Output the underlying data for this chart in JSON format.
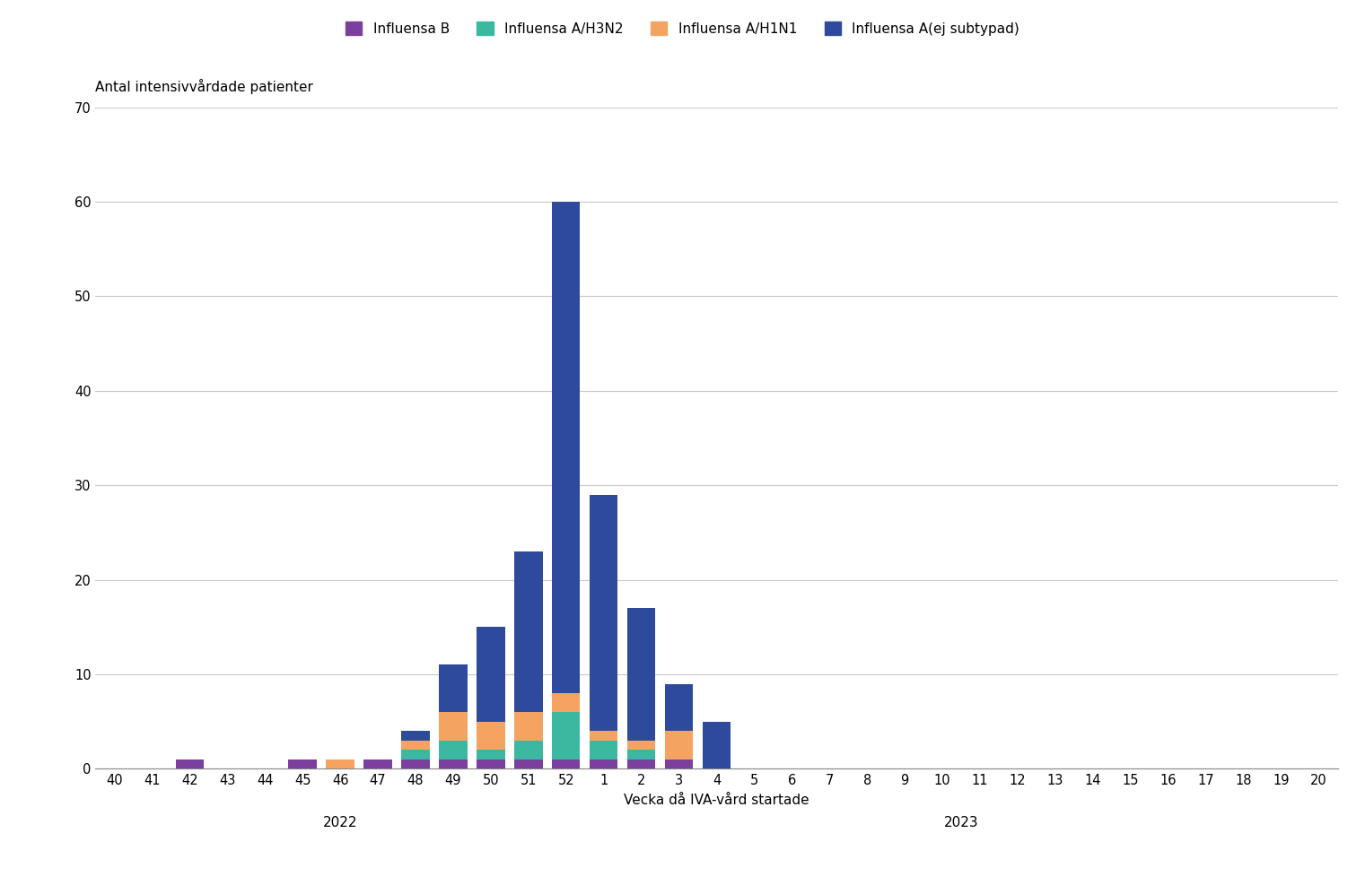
{
  "weeks": [
    "40",
    "41",
    "42",
    "43",
    "44",
    "45",
    "46",
    "47",
    "48",
    "49",
    "50",
    "51",
    "52",
    "1",
    "2",
    "3",
    "4",
    "5",
    "6",
    "7",
    "8",
    "9",
    "10",
    "11",
    "12",
    "13",
    "14",
    "15",
    "16",
    "17",
    "18",
    "19",
    "20"
  ],
  "influensa_B": [
    0,
    0,
    1,
    0,
    0,
    1,
    0,
    1,
    1,
    1,
    1,
    1,
    1,
    1,
    1,
    1,
    0,
    0,
    0,
    0,
    0,
    0,
    0,
    0,
    0,
    0,
    0,
    0,
    0,
    0,
    0,
    0,
    0
  ],
  "influensa_A_H3N2": [
    0,
    0,
    0,
    0,
    0,
    0,
    0,
    0,
    1,
    2,
    1,
    2,
    5,
    2,
    1,
    0,
    0,
    0,
    0,
    0,
    0,
    0,
    0,
    0,
    0,
    0,
    0,
    0,
    0,
    0,
    0,
    0,
    0
  ],
  "influensa_A_H1N1": [
    0,
    0,
    0,
    0,
    0,
    0,
    1,
    0,
    1,
    3,
    3,
    3,
    2,
    1,
    1,
    3,
    0,
    0,
    0,
    0,
    0,
    0,
    0,
    0,
    0,
    0,
    0,
    0,
    0,
    0,
    0,
    0,
    0
  ],
  "influensa_A_ej": [
    0,
    0,
    0,
    0,
    0,
    0,
    0,
    0,
    1,
    5,
    10,
    17,
    52,
    25,
    14,
    5,
    5,
    0,
    0,
    0,
    0,
    0,
    0,
    0,
    0,
    0,
    0,
    0,
    0,
    0,
    0,
    0,
    0
  ],
  "colors": {
    "influensa_B": "#7B3F9E",
    "influensa_A_H3N2": "#3CB8A0",
    "influensa_A_H1N1": "#F4A460",
    "influensa_A_ej": "#2E4A9C"
  },
  "legend_labels": [
    "Influensa B",
    "Influensa A/H3N2",
    "Influensa A/H1N1",
    "Influensa A(ej subtypad)"
  ],
  "ylabel": "Antal intensivvårdade patienter",
  "xlabel": "Vecka då IVA-vård startade",
  "year_2022_range": [
    0,
    12
  ],
  "year_2023_range": [
    13,
    32
  ],
  "ylim": [
    0,
    70
  ],
  "yticks": [
    0,
    10,
    20,
    30,
    40,
    50,
    60,
    70
  ],
  "background_color": "#ffffff",
  "grid_color": "#c8c8c8",
  "bar_width": 0.75
}
